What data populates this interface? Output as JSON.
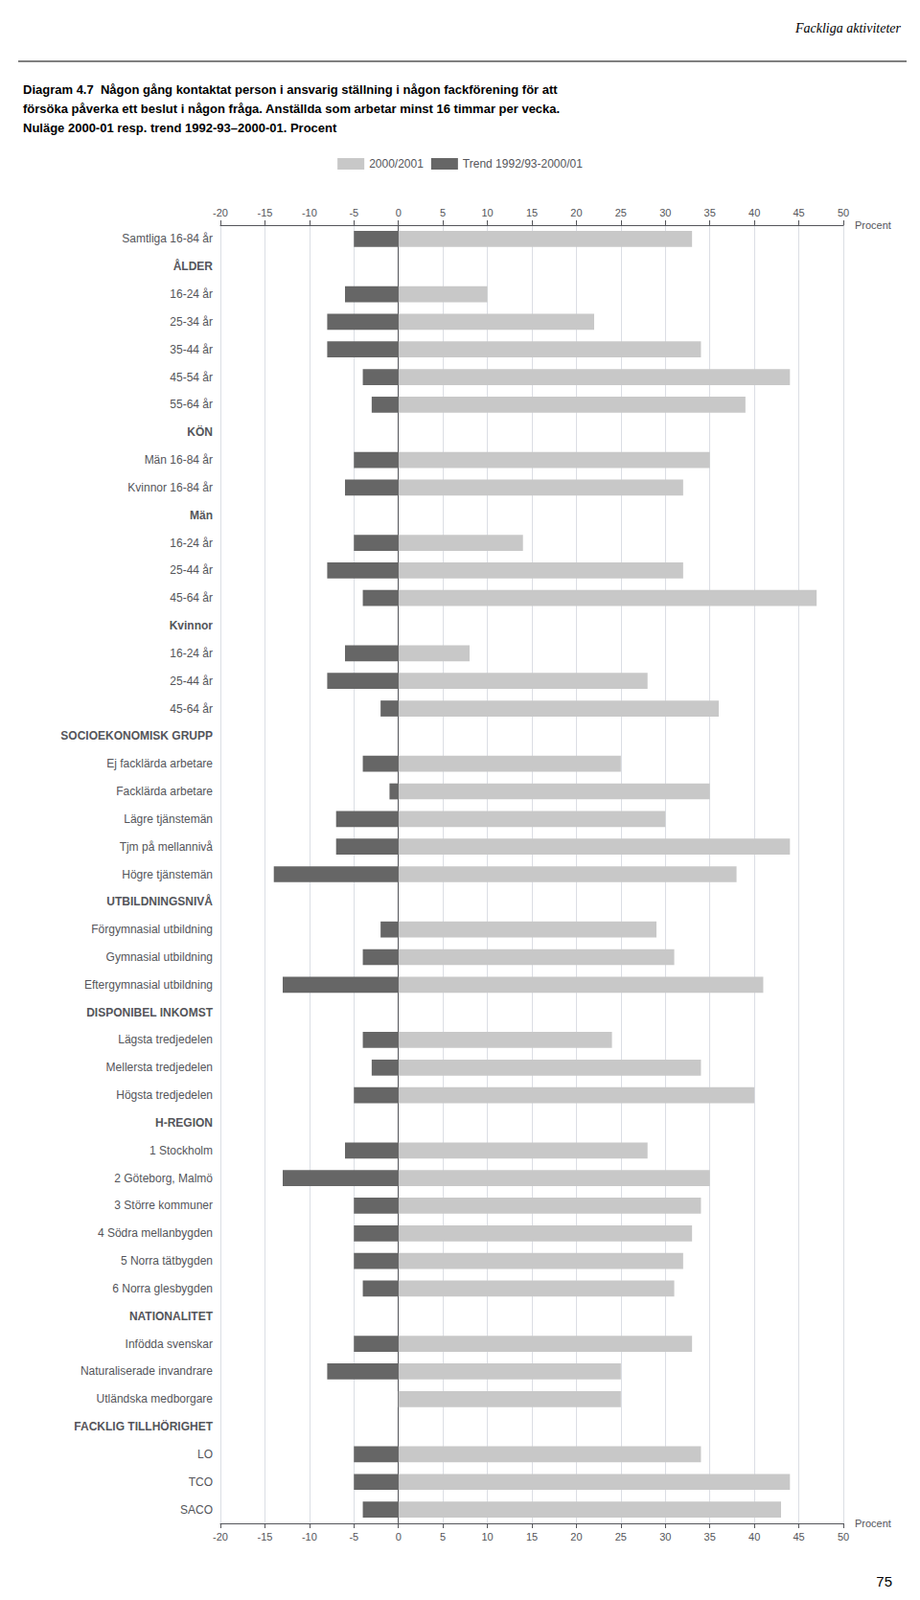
{
  "chart_data": {
    "type": "bar",
    "orientation": "horizontal",
    "title": [
      "Diagram 4.7  Någon gång kontaktat person i ansvarig ställning i någon fackförening för att",
      "försöka påverka ett beslut i någon fråga. Anställda som arbetar minst 16 timmar per vecka.",
      "Nuläge 2000-01 resp. trend 1992-93–2000-01. Procent"
    ],
    "annotations": [
      "Fackliga aktiviteter",
      "75"
    ],
    "xlabel": "Procent",
    "categories": [
      "Samtliga 16-84 år",
      "ÅLDER",
      "16-24 år",
      "25-34 år",
      "35-44 år",
      "45-54 år",
      "55-64 år",
      "KÖN",
      "Män 16-84 år",
      "Kvinnor 16-84 år",
      "Män",
      "16-24 år",
      "25-44 år",
      "45-64 år",
      "Kvinnor",
      "16-24 år",
      "25-44 år",
      "45-64 år",
      "SOCIOEKONOMISK GRUPP",
      "Ej facklärda arbetare",
      "Facklärda arbetare",
      "Lägre tjänstemän",
      "Tjm på mellannivå",
      "Högre tjänstemän",
      "UTBILDNINGSNIVÅ",
      "Förgymnasial utbildning",
      "Gymnasial utbildning",
      "Eftergymnasial utbildning",
      "DISPONIBEL INKOMST",
      "Lägsta tredjedelen",
      "Mellersta tredjedelen",
      "Högsta tredjedelen",
      "H-REGION",
      "1 Stockholm",
      "2 Göteborg, Malmö",
      "3 Större kommuner",
      "4 Södra mellanbygden",
      "5 Norra tätbygden",
      "6 Norra glesbygden",
      "NATIONALITET",
      "Infödda svenskar",
      "Naturaliserade invandrare",
      "Utländska medborgare",
      "FACKLIG TILLHÖRIGHET",
      "LO",
      "TCO",
      "SACO"
    ],
    "series": [
      {
        "name": "2000/2001",
        "color": "#c8c8c8",
        "values": [
          33,
          null,
          10,
          22,
          34,
          44,
          39,
          null,
          35,
          32,
          null,
          14,
          32,
          47,
          null,
          8,
          28,
          36,
          null,
          25,
          35,
          30,
          44,
          38,
          null,
          29,
          31,
          41,
          null,
          24,
          34,
          40,
          null,
          28,
          35,
          34,
          33,
          32,
          31,
          null,
          33,
          25,
          25,
          null,
          34,
          44,
          43
        ]
      },
      {
        "name": "Trend 1992/93-2000/01",
        "color": "#666666",
        "values": [
          -5,
          null,
          -6,
          -8,
          -8,
          -4,
          -3,
          null,
          -5,
          -6,
          null,
          -5,
          -8,
          -4,
          null,
          -6,
          -8,
          -2,
          null,
          -4,
          -1,
          -7,
          -7,
          -14,
          null,
          -2,
          -4,
          -13,
          null,
          -4,
          -3,
          -5,
          null,
          -6,
          -13,
          -5,
          -5,
          -5,
          -4,
          null,
          -5,
          -8,
          0,
          null,
          -5,
          -5,
          -4
        ]
      }
    ],
    "xlim": [
      -20,
      50
    ],
    "xticks": [
      -20,
      -15,
      -10,
      -5,
      0,
      5,
      10,
      15,
      20,
      25,
      30,
      35,
      40,
      45,
      50
    ],
    "grid": true,
    "legend": "top"
  }
}
